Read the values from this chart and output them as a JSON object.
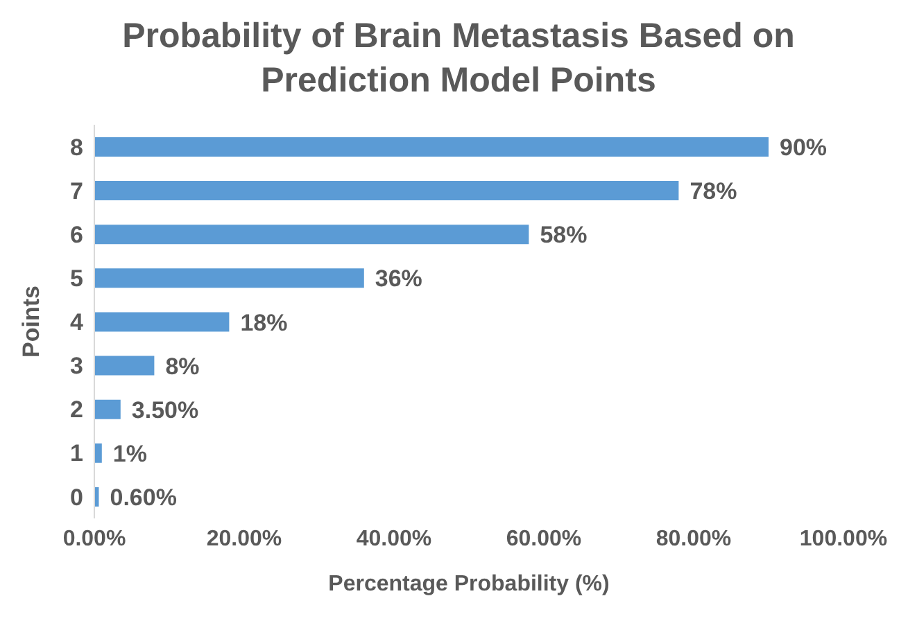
{
  "chart_data": {
    "type": "bar",
    "orientation": "horizontal",
    "title": "Probability of Brain Metastasis Based on Prediction Model Points",
    "xlabel": "Percentage Probability (%)",
    "ylabel": "Points",
    "categories": [
      "8",
      "7",
      "6",
      "5",
      "4",
      "3",
      "2",
      "1",
      "0"
    ],
    "values": [
      90,
      78,
      58,
      36,
      18,
      8,
      3.5,
      1,
      0.6
    ],
    "value_labels": [
      "90%",
      "78%",
      "58%",
      "36%",
      "18%",
      "8%",
      "3.50%",
      "1%",
      "0.60%"
    ],
    "color": "#5b9bd5",
    "xlim": [
      0,
      100
    ],
    "xticks": [
      {
        "value": 0,
        "label": "0.00%"
      },
      {
        "value": 20,
        "label": "20.00%"
      },
      {
        "value": 40,
        "label": "40.00%"
      },
      {
        "value": 60,
        "label": "60.00%"
      },
      {
        "value": 80,
        "label": "80.00%"
      },
      {
        "value": 100,
        "label": "100.00%"
      }
    ],
    "grid": false,
    "legend": false
  }
}
